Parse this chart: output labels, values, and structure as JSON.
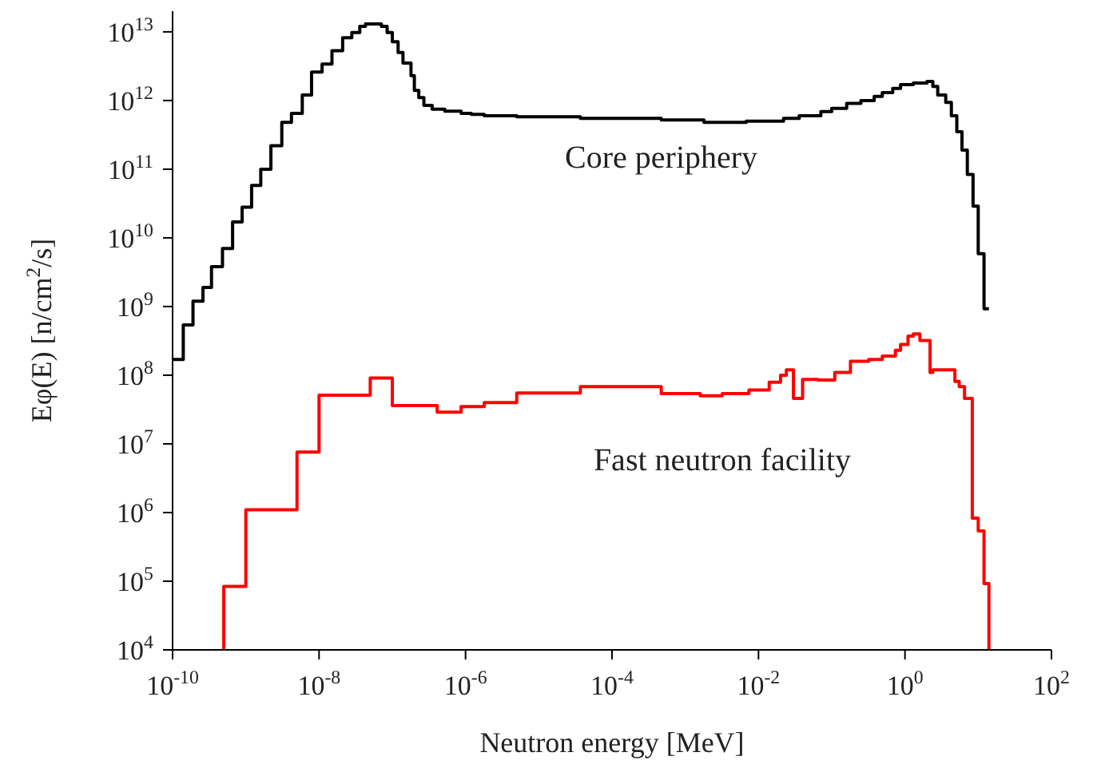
{
  "chart_data": {
    "type": "step",
    "xlabel": "Neutron energy [MeV]",
    "ylabel": "Eφ(E) [n/cm$^{2}$/s]",
    "log": "xy",
    "xlim": [
      1e-10,
      100
    ],
    "ylim": [
      10000,
      20000000000000.0
    ],
    "xticks": [
      {
        "value": 1e-10,
        "label": "10$^{-10}$"
      },
      {
        "value": 1e-08,
        "label": "10$^{-8}$"
      },
      {
        "value": 1e-06,
        "label": "10$^{-6}$"
      },
      {
        "value": 0.0001,
        "label": "10$^{-4}$"
      },
      {
        "value": 0.01,
        "label": "10$^{-2}$"
      },
      {
        "value": 1,
        "label": "10$^{0}$"
      },
      {
        "value": 100,
        "label": "10$^{2}$"
      }
    ],
    "yticks": [
      {
        "value": 10000.0,
        "label": "10$^{4}$"
      },
      {
        "value": 100000.0,
        "label": "10$^{5}$"
      },
      {
        "value": 1000000.0,
        "label": "10$^{6}$"
      },
      {
        "value": 10000000.0,
        "label": "10$^{7}$"
      },
      {
        "value": 100000000.0,
        "label": "10$^{8}$"
      },
      {
        "value": 1000000000.0,
        "label": "10$^{9}$"
      },
      {
        "value": 10000000000.0,
        "label": "10$^{10}$"
      },
      {
        "value": 100000000000.0,
        "label": "10$^{11}$"
      },
      {
        "value": 1000000000000.0,
        "label": "10$^{12}$"
      },
      {
        "value": 10000000000000.0,
        "label": "10$^{13}$"
      }
    ],
    "series": [
      {
        "name": "Core periphery",
        "color": "#000000",
        "x": [
          1e-10,
          1.4e-10,
          1.9e-10,
          2.6e-10,
          3.4e-10,
          4.8e-10,
          6.6e-10,
          8.9e-10,
          1.2e-09,
          1.6e-09,
          2.2e-09,
          3.1e-09,
          4.2e-09,
          5.9e-09,
          7.9e-09,
          1.1e-08,
          1.5e-08,
          2.1e-08,
          2.8e-08,
          3.6e-08,
          4.3e-08,
          7.1e-08,
          8.5e-08,
          1e-07,
          1.2e-07,
          1.4e-07,
          1.8e-07,
          2e-07,
          2.3e-07,
          2.7e-07,
          3.5e-07,
          5.2e-07,
          8.7e-07,
          1.2e-06,
          1.8e-06,
          5e-06,
          3.7e-05,
          0.00047,
          0.0018,
          0.0068,
          0.022,
          0.036,
          0.071,
          0.1,
          0.16,
          0.25,
          0.38,
          0.49,
          0.68,
          0.87,
          1.3,
          2,
          2.4,
          2.8,
          3.6,
          4.3,
          5.1,
          6,
          7.1,
          8.5,
          10,
          12,
          14
        ],
        "values": [
          170000000.0,
          540000000.0,
          1200000000.0,
          1900000000.0,
          3800000000.0,
          7000000000.0,
          17000000000.0,
          28000000000.0,
          58000000000.0,
          100000000000.0,
          220000000000.0,
          480000000000.0,
          650000000000.0,
          1200000000000.0,
          2600000000000.0,
          3400000000000.0,
          5300000000000.0,
          8200000000000.0,
          9800000000000.0,
          12000000000000.0,
          13000000000000.0,
          12000000000000.0,
          9800000000000.0,
          7200000000000.0,
          5000000000000.0,
          3500000000000.0,
          2300000000000.0,
          1400000000000.0,
          1100000000000.0,
          850000000000.0,
          750000000000.0,
          700000000000.0,
          650000000000.0,
          630000000000.0,
          600000000000.0,
          580000000000.0,
          550000000000.0,
          520000000000.0,
          480000000000.0,
          500000000000.0,
          550000000000.0,
          600000000000.0,
          690000000000.0,
          770000000000.0,
          910000000000.0,
          1000000000000.0,
          1150000000000.0,
          1300000000000.0,
          1500000000000.0,
          1700000000000.0,
          1800000000000.0,
          1900000000000.0,
          1600000000000.0,
          1200000000000.0,
          940000000000.0,
          600000000000.0,
          350000000000.0,
          190000000000.0,
          84000000000.0,
          29000000000.0,
          5900000000.0,
          930000000.0,
          930000000.0
        ]
      },
      {
        "name": "Fast neutron facility",
        "color": "#ff0000",
        "x": [
          5e-10,
          5e-10,
          1e-09,
          5e-09,
          1e-08,
          5e-08,
          1e-07,
          4.1e-07,
          8.7e-07,
          1.8e-06,
          5e-06,
          3.7e-05,
          0.00047,
          0.0016,
          0.0032,
          0.0074,
          0.014,
          0.02,
          0.024,
          0.03,
          0.04,
          0.065,
          0.11,
          0.18,
          0.32,
          0.49,
          0.74,
          0.87,
          1.1,
          1.3,
          1.6,
          2.2,
          2.4,
          4.8,
          5.5,
          6.5,
          8.3,
          10,
          12,
          14
        ],
        "values": [
          10000.0,
          84000.0,
          1100000.0,
          7600000.0,
          51000000.0,
          91000000.0,
          36000000.0,
          29000000.0,
          35000000.0,
          40000000.0,
          55000000.0,
          68000000.0,
          54000000.0,
          50000000.0,
          54000000.0,
          61000000.0,
          79000000.0,
          100000000.0,
          120000000.0,
          46000000.0,
          87000000.0,
          85000000.0,
          110000000.0,
          160000000.0,
          170000000.0,
          190000000.0,
          230000000.0,
          280000000.0,
          370000000.0,
          400000000.0,
          320000000.0,
          110000000.0,
          120000000.0,
          81000000.0,
          68000000.0,
          46000000.0,
          830000.0,
          540000.0,
          92000.0,
          10000.0
        ]
      }
    ]
  }
}
